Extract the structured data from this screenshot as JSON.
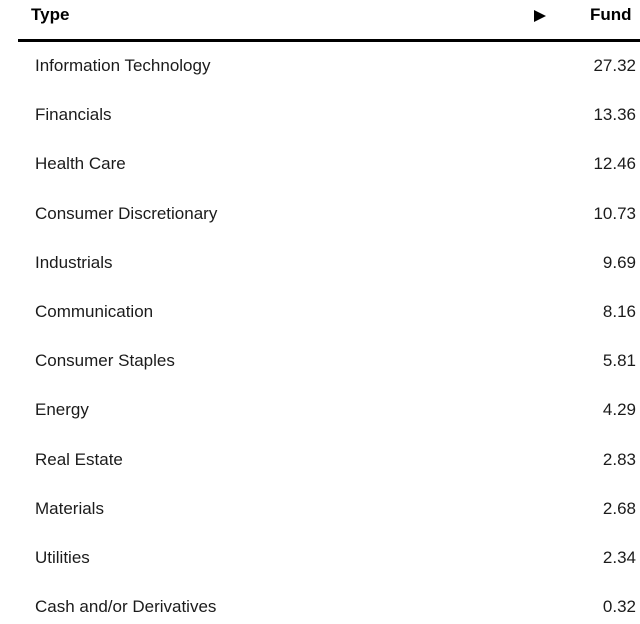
{
  "header": {
    "type": "Type",
    "fund": "Fund"
  },
  "table": {
    "rows": [
      [
        "Information Technology",
        27.32
      ],
      [
        "Financials",
        13.36
      ],
      [
        "Health Care",
        12.46
      ],
      [
        "Consumer Discretionary",
        10.73
      ],
      [
        "Industrials",
        9.69
      ],
      [
        "Communication",
        8.16
      ],
      [
        "Consumer Staples",
        5.81
      ],
      [
        "Energy",
        4.29
      ],
      [
        "Real Estate",
        2.83
      ],
      [
        "Materials",
        2.68
      ],
      [
        "Utilities",
        2.34
      ],
      [
        "Cash and/or Derivatives",
        0.32
      ]
    ]
  }
}
